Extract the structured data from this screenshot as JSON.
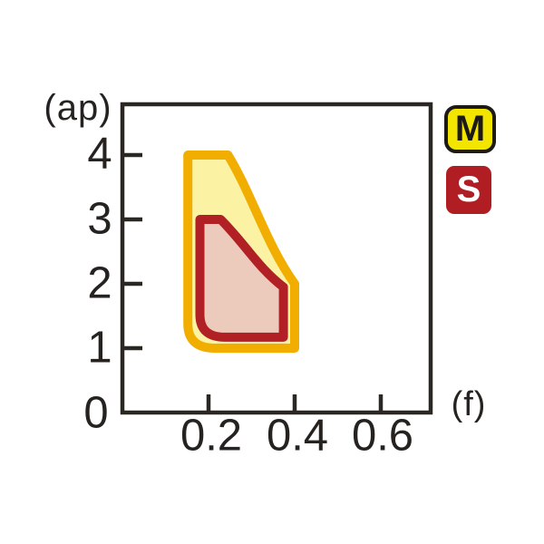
{
  "chart_data": {
    "type": "area",
    "title": "",
    "xlabel": "(f)",
    "ylabel": "(ap)",
    "x_tick_labels": [
      "0.2",
      "0.4",
      "0.6"
    ],
    "y_tick_labels": [
      "4",
      "3",
      "2",
      "1",
      "0"
    ],
    "x_ticks": [
      0.2,
      0.4,
      0.6
    ],
    "y_ticks": [
      4,
      3,
      2,
      1
    ],
    "xlim": [
      0,
      0.715
    ],
    "ylim": [
      0,
      4.79
    ],
    "grid": false,
    "axis_color": "#2b2723",
    "label_color": "#262220",
    "regions": [
      {
        "name": "M",
        "f_range": [
          0.15,
          0.4
        ],
        "ap_range": [
          1.0,
          4.0
        ],
        "fill": "#FBF3A3",
        "stroke": "#F1AE00",
        "stroke_width": 10,
        "outline": [
          [
            "M",
            0.152,
            4.0
          ],
          [
            "L",
            0.245,
            4.0
          ],
          [
            "C",
            0.3,
            3.4,
            0.335,
            2.6,
            0.4,
            2.0
          ],
          [
            "L",
            0.4,
            1.0
          ],
          [
            "L",
            0.215,
            1.0
          ],
          [
            "Q",
            0.152,
            1.0,
            0.152,
            1.38
          ],
          [
            "Z"
          ]
        ]
      },
      {
        "name": "S",
        "f_range": [
          0.18,
          0.375
        ],
        "ap_range": [
          1.15,
          3.0
        ],
        "fill": "#EDCBBC",
        "stroke": "#B02025",
        "stroke_width": 10,
        "outline": [
          [
            "M",
            0.18,
            3.0
          ],
          [
            "L",
            0.228,
            3.0
          ],
          [
            "C",
            0.285,
            2.62,
            0.315,
            2.25,
            0.374,
            1.95
          ],
          [
            "L",
            0.374,
            1.17
          ],
          [
            "L",
            0.238,
            1.17
          ],
          [
            "Q",
            0.18,
            1.17,
            0.18,
            1.52
          ],
          [
            "Z"
          ]
        ]
      }
    ]
  },
  "legend": [
    {
      "label": "M",
      "bg": "#F2E600",
      "fg": "#1c1916",
      "border": "#1c1916"
    },
    {
      "label": "S",
      "bg": "#B01E23",
      "fg": "#ffffff",
      "border": ""
    }
  ]
}
